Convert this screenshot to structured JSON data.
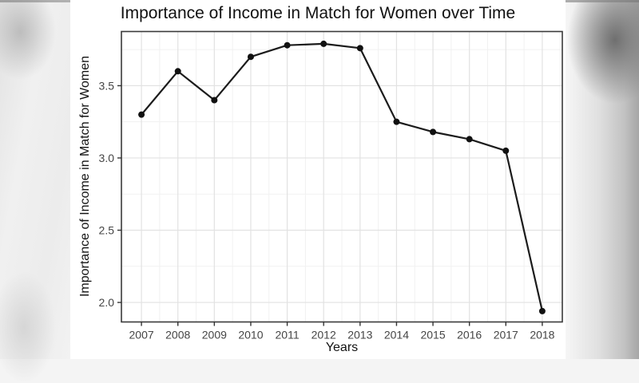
{
  "chart_data": {
    "type": "line",
    "title": "Importance of Income in Match for Women over Time",
    "xlabel": "Years",
    "ylabel": "Importance of Income in Match for Women",
    "x": [
      2007,
      2008,
      2009,
      2010,
      2011,
      2012,
      2013,
      2014,
      2015,
      2016,
      2017,
      2018
    ],
    "values": [
      3.3,
      3.6,
      3.4,
      3.7,
      3.78,
      3.79,
      3.76,
      3.25,
      3.18,
      3.13,
      3.05,
      1.94
    ],
    "xticks": [
      2007,
      2008,
      2009,
      2010,
      2011,
      2012,
      2013,
      2014,
      2015,
      2016,
      2017,
      2018
    ],
    "xtick_labels": [
      "2007",
      "2008",
      "2009",
      "2010",
      "2011",
      "2012",
      "2013",
      "2014",
      "2015",
      "2016",
      "2017",
      "2018"
    ],
    "yticks": [
      2.0,
      2.5,
      3.0,
      3.5
    ],
    "ytick_labels": [
      "2.0",
      "2.5",
      "3.0",
      "3.5"
    ],
    "xlim": [
      2006.45,
      2018.55
    ],
    "ylim": [
      1.865,
      3.875
    ],
    "grid": "major and minor gridlines, light gray on white panel",
    "legend": "none",
    "marker": "filled-circle",
    "colors": {
      "line": "#1b1b1b",
      "point": "#111111",
      "grid_major": "#e2e2e2",
      "grid_minor": "#f1f1f1",
      "panel_border": "#3a3a3a",
      "panel_bg": "#ffffff",
      "tick_mark": "#333333",
      "tick_text": "#454545",
      "title_text": "#121212"
    }
  },
  "backdrop": {
    "style": "blurred gray letterbox strips left and right of white figure",
    "left_edge_color": "#e2e2e2",
    "right_edge_color": "#a6a6a6",
    "top_edge_color": "#8b8b8b"
  }
}
